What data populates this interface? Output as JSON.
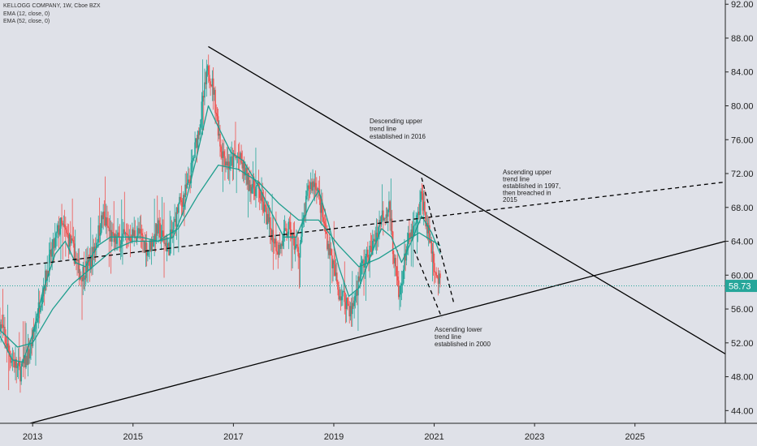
{
  "legend": {
    "title": "KELLOGG COMPANY, 1W, Cboe BZX",
    "ema12": "EMA (12, close, 0)",
    "ema52": "EMA (52, close, 0)"
  },
  "price_badge": "58.73",
  "annotations": [
    {
      "lines": [
        "Descending upper",
        "trend line",
        "established in 2016"
      ]
    },
    {
      "lines": [
        "Ascending upper",
        "trend line",
        "established in 1997,",
        "then breached in",
        "2015"
      ]
    },
    {
      "lines": [
        "Ascending lower",
        "trend line",
        "established in 2000"
      ]
    }
  ],
  "colors": {
    "background": "#dfe1e8",
    "up": "#26a69a",
    "down": "#ef5350",
    "ema": "#1f9e8e",
    "trend": "#000000",
    "price_line": "#26a69a"
  },
  "chart_data": {
    "type": "line",
    "title": "KELLOGG COMPANY, 1W, Cboe BZX",
    "x_ticks": [
      "2013",
      "2015",
      "2017",
      "2019",
      "2021",
      "2023",
      "2025"
    ],
    "y_ticks": [
      "44.00",
      "48.00",
      "52.00",
      "56.00",
      "60.00",
      "64.00",
      "68.00",
      "72.00",
      "76.00",
      "80.00",
      "84.00",
      "88.00",
      "92.00"
    ],
    "ylim": [
      42.5,
      92.5
    ],
    "xlim": [
      2012.35,
      2026.8
    ],
    "grid": false,
    "last_price": 58.73,
    "price_path": [
      [
        2012.35,
        54.5
      ],
      [
        2012.55,
        50.5
      ],
      [
        2012.75,
        48.5
      ],
      [
        2012.95,
        51.0
      ],
      [
        2013.15,
        57.0
      ],
      [
        2013.35,
        62.0
      ],
      [
        2013.55,
        66.0
      ],
      [
        2013.75,
        64.0
      ],
      [
        2013.95,
        60.0
      ],
      [
        2014.15,
        61.5
      ],
      [
        2014.4,
        67.0
      ],
      [
        2014.6,
        64.0
      ],
      [
        2014.9,
        64.5
      ],
      [
        2015.1,
        65.0
      ],
      [
        2015.3,
        63.0
      ],
      [
        2015.5,
        65.5
      ],
      [
        2015.7,
        63.0
      ],
      [
        2015.9,
        68.0
      ],
      [
        2016.1,
        70.5
      ],
      [
        2016.3,
        77.0
      ],
      [
        2016.5,
        84.5
      ],
      [
        2016.6,
        82.0
      ],
      [
        2016.75,
        75.0
      ],
      [
        2016.9,
        73.0
      ],
      [
        2017.1,
        74.0
      ],
      [
        2017.3,
        71.0
      ],
      [
        2017.5,
        70.0
      ],
      [
        2017.7,
        66.0
      ],
      [
        2017.9,
        63.0
      ],
      [
        2018.1,
        65.5
      ],
      [
        2018.3,
        62.5
      ],
      [
        2018.5,
        70.5
      ],
      [
        2018.65,
        71.0
      ],
      [
        2018.8,
        66.0
      ],
      [
        2018.95,
        62.0
      ],
      [
        2019.1,
        58.0
      ],
      [
        2019.25,
        57.0
      ],
      [
        2019.35,
        55.5
      ],
      [
        2019.55,
        61.0
      ],
      [
        2019.75,
        63.0
      ],
      [
        2019.95,
        67.0
      ],
      [
        2020.1,
        68.0
      ],
      [
        2020.2,
        62.0
      ],
      [
        2020.3,
        57.0
      ],
      [
        2020.45,
        63.5
      ],
      [
        2020.65,
        66.0
      ],
      [
        2020.75,
        69.5
      ],
      [
        2020.85,
        66.0
      ],
      [
        2020.95,
        63.0
      ],
      [
        2021.05,
        60.0
      ],
      [
        2021.12,
        58.73
      ]
    ],
    "ema12_path": [
      [
        2012.35,
        52.8
      ],
      [
        2012.6,
        50.0
      ],
      [
        2012.8,
        49.7
      ],
      [
        2013.0,
        53.0
      ],
      [
        2013.2,
        58.0
      ],
      [
        2013.45,
        62.5
      ],
      [
        2013.65,
        64.0
      ],
      [
        2013.85,
        61.5
      ],
      [
        2014.05,
        61.0
      ],
      [
        2014.3,
        63.5
      ],
      [
        2014.55,
        64.5
      ],
      [
        2014.85,
        64.5
      ],
      [
        2015.15,
        64.5
      ],
      [
        2015.5,
        64.0
      ],
      [
        2015.8,
        64.5
      ],
      [
        2016.0,
        67.5
      ],
      [
        2016.25,
        73.5
      ],
      [
        2016.5,
        80.0
      ],
      [
        2016.7,
        77.5
      ],
      [
        2016.95,
        74.5
      ],
      [
        2017.2,
        73.5
      ],
      [
        2017.5,
        70.5
      ],
      [
        2017.75,
        67.5
      ],
      [
        2018.0,
        64.5
      ],
      [
        2018.25,
        64.5
      ],
      [
        2018.5,
        68.0
      ],
      [
        2018.7,
        70.0
      ],
      [
        2018.9,
        66.0
      ],
      [
        2019.1,
        61.0
      ],
      [
        2019.3,
        57.5
      ],
      [
        2019.5,
        58.5
      ],
      [
        2019.75,
        62.5
      ],
      [
        2019.95,
        65.5
      ],
      [
        2020.15,
        64.5
      ],
      [
        2020.35,
        61.5
      ],
      [
        2020.55,
        64.0
      ],
      [
        2020.75,
        67.0
      ],
      [
        2020.95,
        65.0
      ],
      [
        2021.12,
        62.5
      ]
    ],
    "ema52_path": [
      [
        2012.35,
        53.5
      ],
      [
        2012.7,
        51.5
      ],
      [
        2013.0,
        52.0
      ],
      [
        2013.4,
        56.0
      ],
      [
        2013.8,
        59.0
      ],
      [
        2014.2,
        61.0
      ],
      [
        2014.6,
        63.0
      ],
      [
        2015.0,
        64.0
      ],
      [
        2015.5,
        64.0
      ],
      [
        2015.9,
        65.5
      ],
      [
        2016.3,
        69.5
      ],
      [
        2016.7,
        73.0
      ],
      [
        2017.1,
        72.5
      ],
      [
        2017.5,
        71.0
      ],
      [
        2017.9,
        68.5
      ],
      [
        2018.3,
        66.5
      ],
      [
        2018.7,
        66.5
      ],
      [
        2019.1,
        63.5
      ],
      [
        2019.5,
        61.0
      ],
      [
        2019.9,
        62.0
      ],
      [
        2020.3,
        63.5
      ],
      [
        2020.7,
        65.0
      ],
      [
        2021.12,
        63.5
      ]
    ],
    "trend_lines": [
      {
        "style": "solid",
        "from": [
          2016.5,
          87.0
        ],
        "to": [
          2026.8,
          50.7
        ]
      },
      {
        "style": "solid",
        "from": [
          2012.95,
          42.5
        ],
        "to": [
          2026.8,
          64.0
        ]
      },
      {
        "style": "dashed",
        "from": [
          2012.35,
          60.8
        ],
        "to": [
          2026.8,
          71.0
        ]
      },
      {
        "style": "dashed",
        "from": [
          2020.75,
          71.5
        ],
        "to": [
          2021.4,
          56.5
        ]
      },
      {
        "style": "dashed",
        "from": [
          2020.6,
          63.0
        ],
        "to": [
          2021.15,
          55.0
        ]
      }
    ]
  }
}
